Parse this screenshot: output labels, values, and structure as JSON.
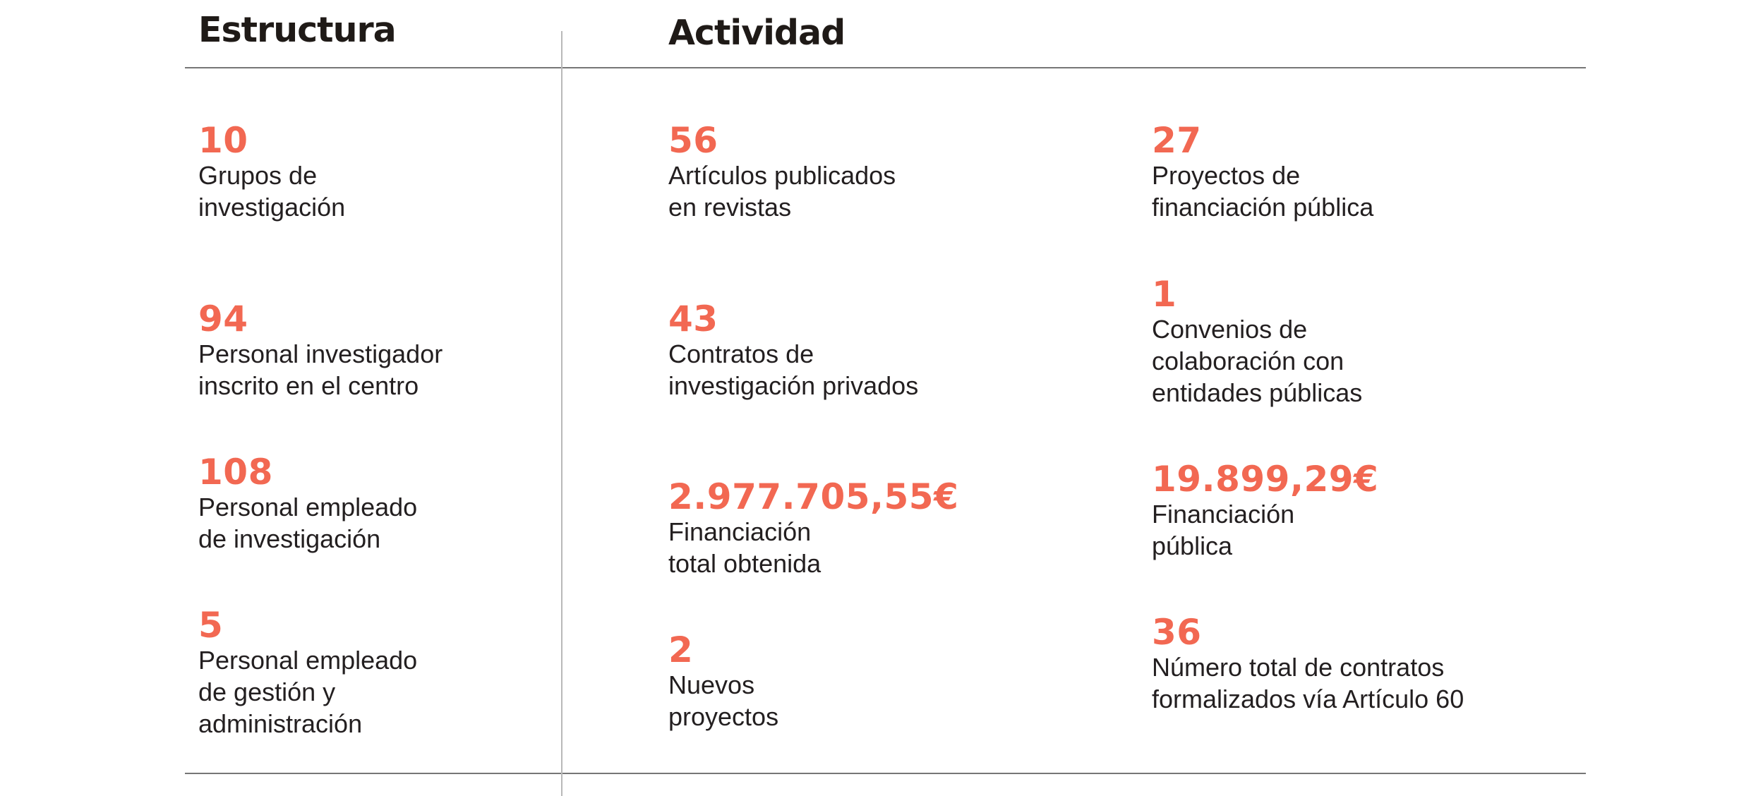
{
  "headings": {
    "estructura": "Estructura",
    "actividad": "Actividad"
  },
  "colors": {
    "accent": "#f26852",
    "text": "#231f20",
    "rule": "#767676"
  },
  "estructura": [
    {
      "value": "10",
      "label": "Grupos de\ninvestigación"
    },
    {
      "value": "94",
      "label": "Personal investigador\ninscrito en el centro"
    },
    {
      "value": "108",
      "label": "Personal empleado\nde investigación"
    },
    {
      "value": "5",
      "label": "Personal empleado\nde gestión y\nadministración"
    }
  ],
  "actividad_col1": [
    {
      "value": "56",
      "label": "Artículos publicados\nen revistas"
    },
    {
      "value": "43",
      "label": "Contratos de\ninvestigación privados"
    },
    {
      "value": "2.977.705,55€",
      "label": "Financiación\ntotal obtenida"
    },
    {
      "value": "2",
      "label": "Nuevos\nproyectos"
    }
  ],
  "actividad_col2": [
    {
      "value": "27",
      "label": "Proyectos de\nfinanciación pública"
    },
    {
      "value": "1",
      "label": "Convenios de\ncolaboración con\nentidades públicas"
    },
    {
      "value": "19.899,29€",
      "label": "Financiación\npública"
    },
    {
      "value": "36",
      "label": "Número total de contratos\nformalizados vía Artículo 60"
    }
  ]
}
